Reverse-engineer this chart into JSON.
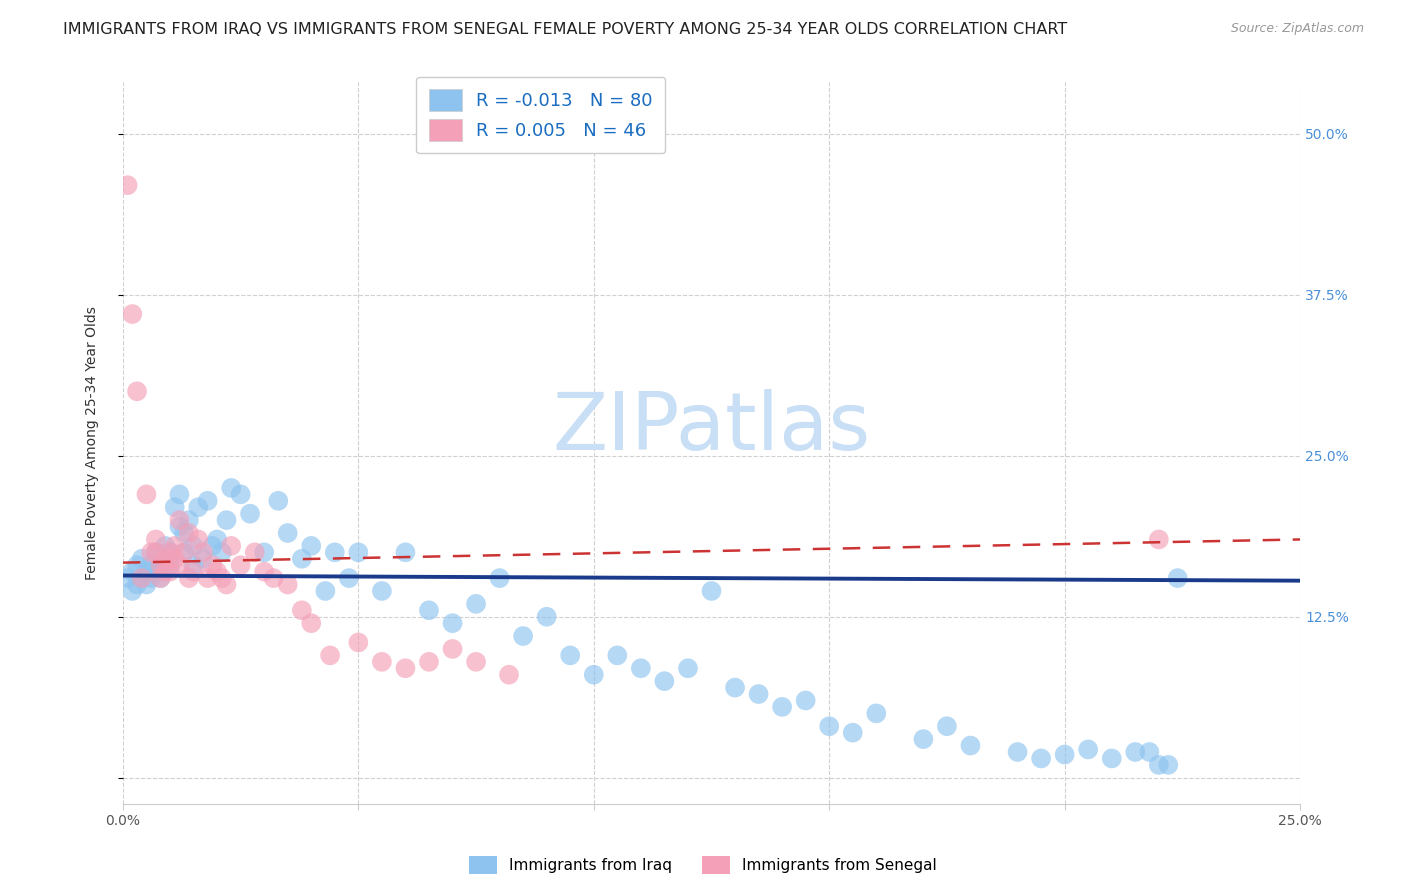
{
  "title": "IMMIGRANTS FROM IRAQ VS IMMIGRANTS FROM SENEGAL FEMALE POVERTY AMONG 25-34 YEAR OLDS CORRELATION CHART",
  "source": "Source: ZipAtlas.com",
  "ylabel": "Female Poverty Among 25-34 Year Olds",
  "xlim": [
    0.0,
    0.25
  ],
  "ylim": [
    -0.02,
    0.54
  ],
  "iraq_color": "#8ec3f0",
  "senegal_color": "#f4a0b8",
  "iraq_line_color": "#1a3a8c",
  "senegal_line_color": "#cc3333",
  "iraq_R": -0.013,
  "iraq_N": 80,
  "senegal_R": 0.005,
  "senegal_N": 46,
  "legend_text_color": "#1a6dc0",
  "watermark_text": "ZIPatlas",
  "watermark_color": "#c8dff5",
  "background_color": "#ffffff",
  "grid_color": "#d0d0d0",
  "right_tick_color": "#4a90d9",
  "title_fontsize": 11.5,
  "axis_label_fontsize": 10,
  "tick_fontsize": 10,
  "iraq_line_start_y": 0.157,
  "iraq_line_end_y": 0.153,
  "senegal_line_start_y": 0.167,
  "senegal_line_end_y": 0.185,
  "iraq_x": [
    0.001,
    0.002,
    0.002,
    0.003,
    0.003,
    0.004,
    0.004,
    0.005,
    0.005,
    0.006,
    0.006,
    0.007,
    0.007,
    0.008,
    0.008,
    0.009,
    0.01,
    0.01,
    0.011,
    0.012,
    0.012,
    0.013,
    0.013,
    0.014,
    0.015,
    0.015,
    0.016,
    0.017,
    0.018,
    0.019,
    0.02,
    0.021,
    0.022,
    0.023,
    0.025,
    0.027,
    0.03,
    0.033,
    0.035,
    0.038,
    0.04,
    0.043,
    0.045,
    0.048,
    0.05,
    0.055,
    0.06,
    0.065,
    0.07,
    0.075,
    0.08,
    0.085,
    0.09,
    0.095,
    0.1,
    0.105,
    0.11,
    0.115,
    0.12,
    0.125,
    0.13,
    0.135,
    0.14,
    0.145,
    0.15,
    0.155,
    0.16,
    0.17,
    0.175,
    0.18,
    0.19,
    0.195,
    0.2,
    0.205,
    0.21,
    0.215,
    0.218,
    0.22,
    0.222,
    0.224
  ],
  "iraq_y": [
    0.155,
    0.16,
    0.145,
    0.165,
    0.15,
    0.155,
    0.17,
    0.15,
    0.16,
    0.155,
    0.165,
    0.16,
    0.175,
    0.155,
    0.165,
    0.18,
    0.175,
    0.165,
    0.21,
    0.22,
    0.195,
    0.175,
    0.19,
    0.2,
    0.165,
    0.18,
    0.21,
    0.17,
    0.215,
    0.18,
    0.185,
    0.175,
    0.2,
    0.225,
    0.22,
    0.205,
    0.175,
    0.215,
    0.19,
    0.17,
    0.18,
    0.145,
    0.175,
    0.155,
    0.175,
    0.145,
    0.175,
    0.13,
    0.12,
    0.135,
    0.155,
    0.11,
    0.125,
    0.095,
    0.08,
    0.095,
    0.085,
    0.075,
    0.085,
    0.145,
    0.07,
    0.065,
    0.055,
    0.06,
    0.04,
    0.035,
    0.05,
    0.03,
    0.04,
    0.025,
    0.02,
    0.015,
    0.018,
    0.022,
    0.015,
    0.02,
    0.02,
    0.01,
    0.01,
    0.155
  ],
  "senegal_x": [
    0.001,
    0.002,
    0.003,
    0.004,
    0.005,
    0.006,
    0.007,
    0.007,
    0.008,
    0.008,
    0.009,
    0.009,
    0.01,
    0.01,
    0.011,
    0.011,
    0.012,
    0.012,
    0.013,
    0.014,
    0.014,
    0.015,
    0.016,
    0.017,
    0.018,
    0.019,
    0.02,
    0.021,
    0.022,
    0.023,
    0.025,
    0.028,
    0.03,
    0.032,
    0.035,
    0.038,
    0.04,
    0.044,
    0.05,
    0.055,
    0.06,
    0.065,
    0.07,
    0.075,
    0.082,
    0.22
  ],
  "senegal_y": [
    0.46,
    0.36,
    0.3,
    0.155,
    0.22,
    0.175,
    0.175,
    0.185,
    0.155,
    0.165,
    0.16,
    0.17,
    0.16,
    0.175,
    0.17,
    0.18,
    0.2,
    0.165,
    0.175,
    0.19,
    0.155,
    0.16,
    0.185,
    0.175,
    0.155,
    0.165,
    0.16,
    0.155,
    0.15,
    0.18,
    0.165,
    0.175,
    0.16,
    0.155,
    0.15,
    0.13,
    0.12,
    0.095,
    0.105,
    0.09,
    0.085,
    0.09,
    0.1,
    0.09,
    0.08,
    0.185
  ]
}
